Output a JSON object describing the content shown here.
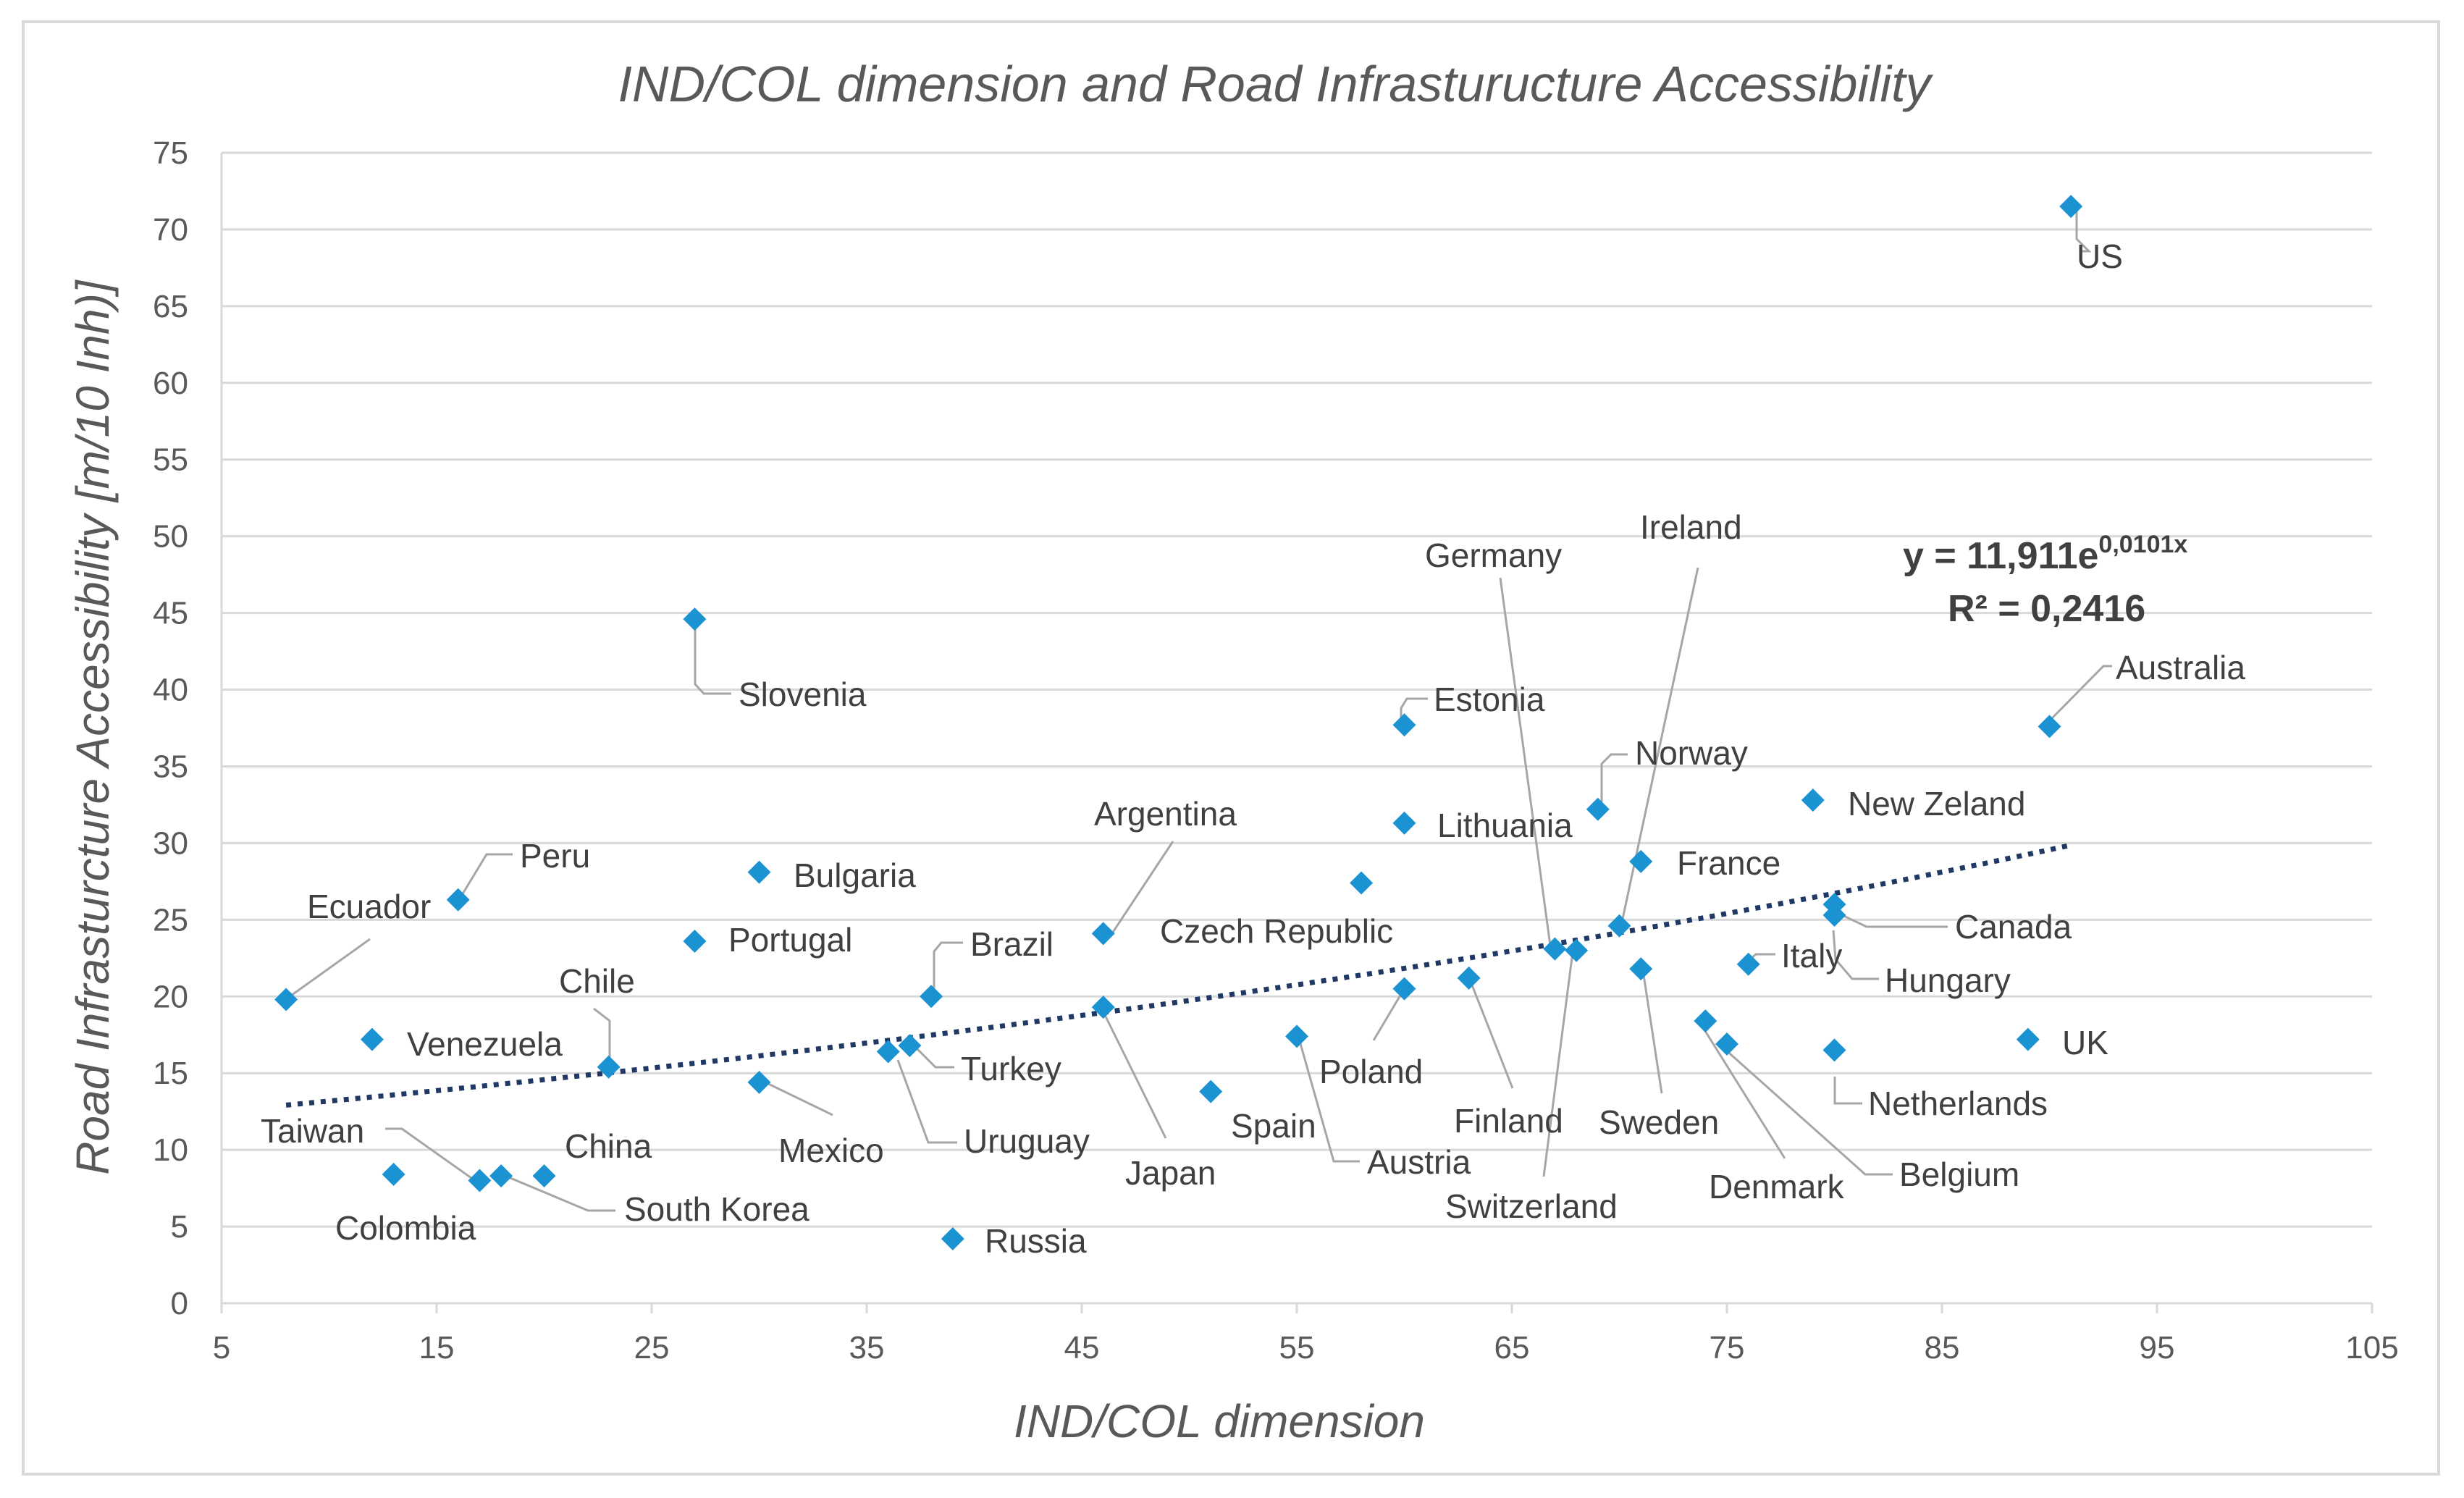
{
  "chart_data": {
    "type": "scatter",
    "title": "IND/COL dimension and Road Infrasturucture Accessibility",
    "xlabel": "IND/COL dimension",
    "ylabel": "Road Infrasturcture Accessibility  [m/10 Inh)]",
    "xlim": [
      5,
      105
    ],
    "ylim": [
      0,
      75
    ],
    "xticks": [
      5,
      15,
      25,
      35,
      45,
      55,
      65,
      75,
      85,
      95,
      105
    ],
    "yticks": [
      0,
      5,
      10,
      15,
      20,
      25,
      30,
      35,
      40,
      45,
      50,
      55,
      60,
      65,
      70,
      75
    ],
    "grid": true,
    "trendline": {
      "type": "exponential",
      "a": 11.911,
      "b": 0.0101,
      "x_range": [
        8,
        91
      ],
      "equation_label": "y = 11,911e",
      "exponent_label": "0,0101x",
      "r2_label": "R² = 0,2416"
    },
    "points": [
      {
        "label": "US",
        "x": 91,
        "y": 71.5
      },
      {
        "label": "Australia",
        "x": 90,
        "y": 37.6
      },
      {
        "label": "New Zeland",
        "x": 79,
        "y": 32.8
      },
      {
        "label": "Canada",
        "x": 80,
        "y": 26.0
      },
      {
        "label": "Hungary",
        "x": 80,
        "y": 25.3
      },
      {
        "label": "UK",
        "x": 89,
        "y": 17.2
      },
      {
        "label": "Netherlands",
        "x": 80,
        "y": 16.5
      },
      {
        "label": "Italy",
        "x": 76,
        "y": 22.1
      },
      {
        "label": "Denmark",
        "x": 74,
        "y": 18.4
      },
      {
        "label": "Belgium",
        "x": 75,
        "y": 16.9
      },
      {
        "label": "Norway",
        "x": 69,
        "y": 32.2
      },
      {
        "label": "France",
        "x": 71,
        "y": 28.8
      },
      {
        "label": "Ireland",
        "x": 70,
        "y": 24.6
      },
      {
        "label": "Germany",
        "x": 67,
        "y": 23.1
      },
      {
        "label": "Switzerland",
        "x": 68,
        "y": 23.0
      },
      {
        "label": "Sweden",
        "x": 71,
        "y": 21.8
      },
      {
        "label": "Finland",
        "x": 63,
        "y": 21.2
      },
      {
        "label": "Estonia",
        "x": 60,
        "y": 37.7
      },
      {
        "label": "Lithuania",
        "x": 60,
        "y": 31.3
      },
      {
        "label": "Czech Republic",
        "x": 58,
        "y": 27.4
      },
      {
        "label": "Poland",
        "x": 60,
        "y": 20.5
      },
      {
        "label": "Austria",
        "x": 55,
        "y": 17.4
      },
      {
        "label": "Spain",
        "x": 51,
        "y": 13.8
      },
      {
        "label": "Argentina",
        "x": 46,
        "y": 24.1
      },
      {
        "label": "Japan",
        "x": 46,
        "y": 19.3
      },
      {
        "label": "Brazil",
        "x": 38,
        "y": 20.0
      },
      {
        "label": "Turkey",
        "x": 37,
        "y": 16.8
      },
      {
        "label": "Uruguay",
        "x": 36,
        "y": 16.4
      },
      {
        "label": "Russia",
        "x": 39,
        "y": 4.2
      },
      {
        "label": "Slovenia",
        "x": 27,
        "y": 44.6
      },
      {
        "label": "Bulgaria",
        "x": 30,
        "y": 28.1
      },
      {
        "label": "Portugal",
        "x": 27,
        "y": 23.6
      },
      {
        "label": "Mexico",
        "x": 30,
        "y": 14.4
      },
      {
        "label": "Chile",
        "x": 23,
        "y": 15.4
      },
      {
        "label": "Peru",
        "x": 16,
        "y": 26.3
      },
      {
        "label": "Ecuador",
        "x": 8,
        "y": 19.8
      },
      {
        "label": "Venezuela",
        "x": 12,
        "y": 17.2
      },
      {
        "label": "Colombia",
        "x": 13,
        "y": 8.4
      },
      {
        "label": "Taiwan",
        "x": 17,
        "y": 8.0
      },
      {
        "label": "South Korea",
        "x": 18,
        "y": 8.3
      },
      {
        "label": "China",
        "x": 20,
        "y": 8.3
      }
    ]
  }
}
